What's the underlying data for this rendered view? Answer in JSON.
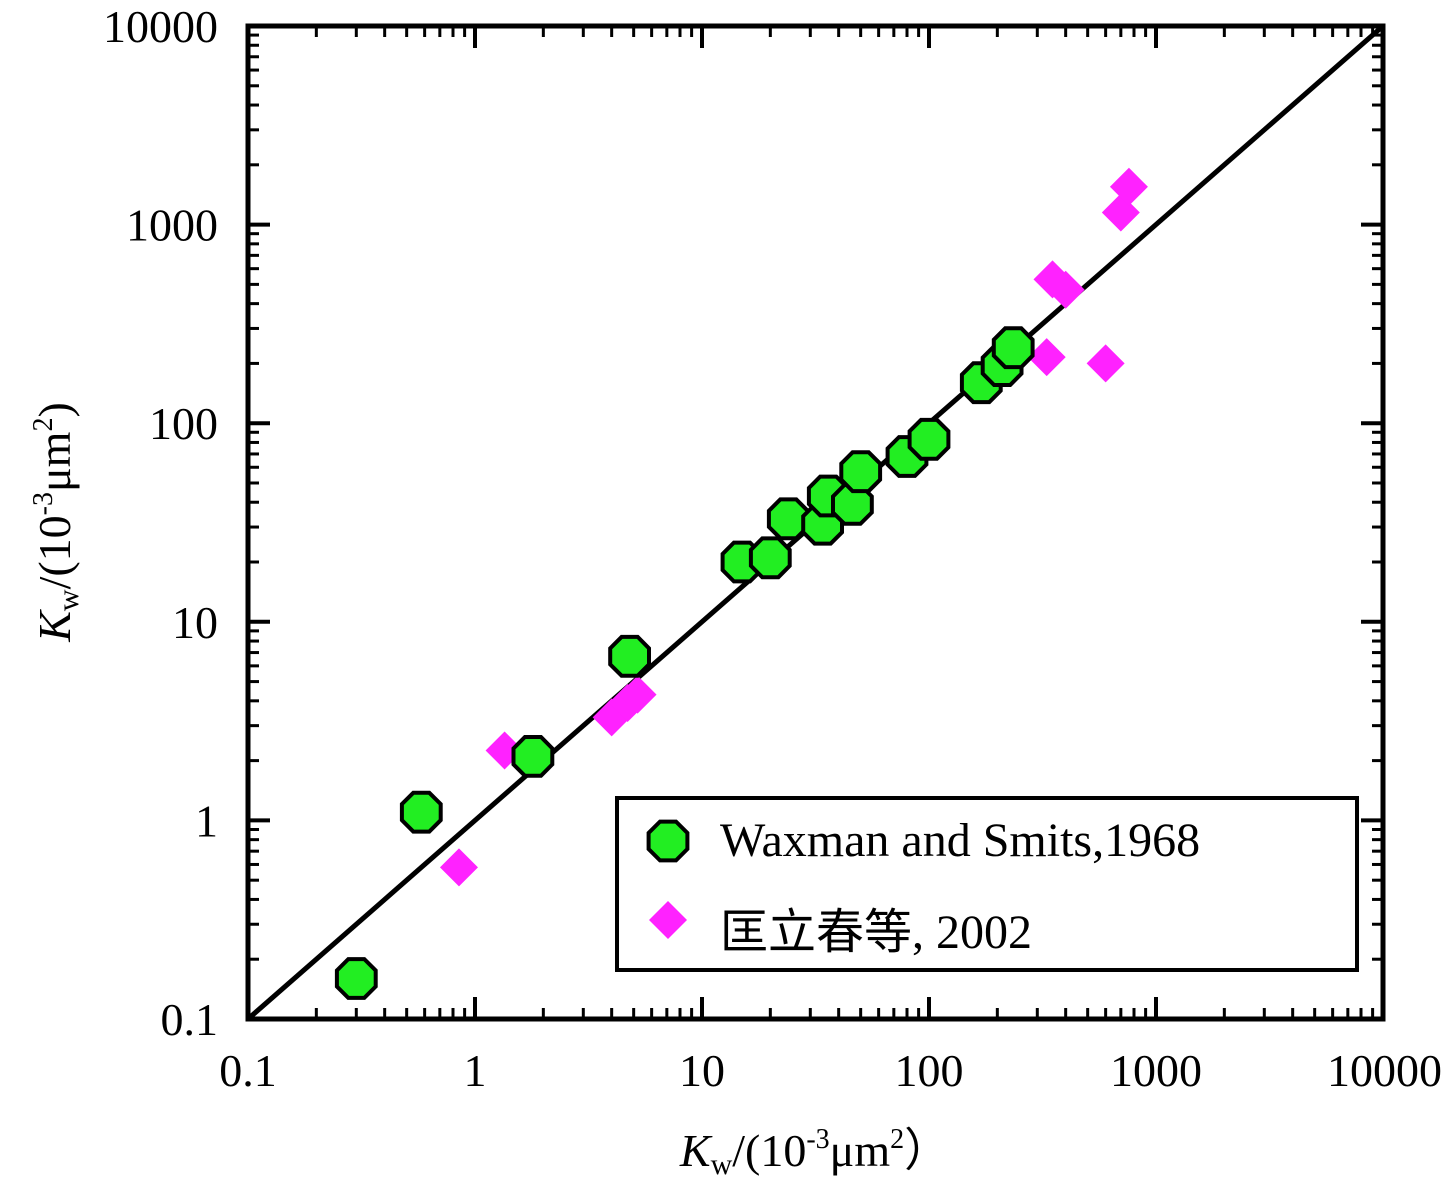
{
  "chart_data": {
    "type": "scatter",
    "title": "",
    "x_scale": "log",
    "y_scale": "log",
    "xlim": [
      0.1,
      10000
    ],
    "ylim": [
      0.1,
      10000
    ],
    "x_ticks": [
      0.1,
      1,
      10,
      100,
      1000,
      10000
    ],
    "y_ticks": [
      0.1,
      1,
      10,
      100,
      1000,
      10000
    ],
    "x_tick_labels": [
      "0.1",
      "1",
      "10",
      "100",
      "1000",
      "10000"
    ],
    "y_tick_labels": [
      "0.1",
      "1",
      "10",
      "100",
      "1000",
      "10000"
    ],
    "xlabel": {
      "symbol": "K",
      "sub": "w",
      "unit_pre": "/(10",
      "exp": "-3",
      "unit_mid": "μm",
      "exp2": "2",
      "unit_post": "）"
    },
    "ylabel": {
      "symbol": "K",
      "sub": "w",
      "unit_pre": "/(10",
      "exp": "-3",
      "unit_mid": "μm",
      "exp2": "2",
      "unit_post": ")"
    },
    "reference_line": {
      "from": [
        0.1,
        0.1
      ],
      "to": [
        10000,
        10000
      ],
      "color": "#000000"
    },
    "grid": false,
    "legend_position": "bottom-right",
    "series": [
      {
        "name": "Waxman and Smits,1968",
        "marker": "octagon",
        "color": "#22ee22",
        "edge_color": "#000000",
        "points": [
          [
            0.3,
            0.16
          ],
          [
            0.58,
            1.1
          ],
          [
            1.8,
            2.1
          ],
          [
            4.8,
            6.7
          ],
          [
            15,
            20
          ],
          [
            20,
            21
          ],
          [
            24,
            33
          ],
          [
            34,
            31
          ],
          [
            36,
            43
          ],
          [
            46,
            39
          ],
          [
            50,
            57
          ],
          [
            80,
            68
          ],
          [
            100,
            83
          ],
          [
            170,
            160
          ],
          [
            210,
            195
          ],
          [
            235,
            240
          ]
        ]
      },
      {
        "name": "匡立春等, 2002",
        "marker": "diamond",
        "color": "#ff22ff",
        "points": [
          [
            0.85,
            0.58
          ],
          [
            1.35,
            2.25
          ],
          [
            4.0,
            3.3
          ],
          [
            4.7,
            3.9
          ],
          [
            5.2,
            4.3
          ],
          [
            330,
            215
          ],
          [
            350,
            530
          ],
          [
            400,
            470
          ],
          [
            600,
            200
          ],
          [
            700,
            1150
          ],
          [
            760,
            1550
          ]
        ]
      }
    ]
  }
}
